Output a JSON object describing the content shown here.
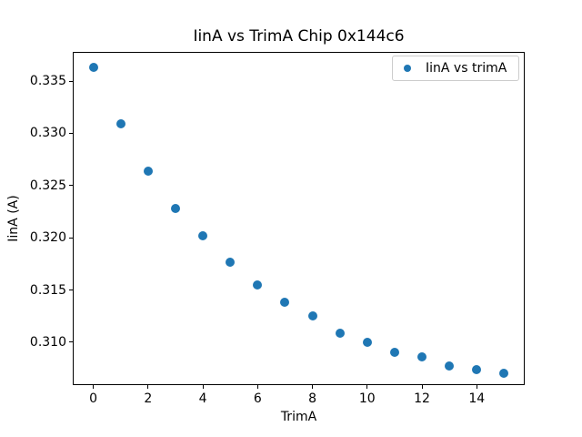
{
  "window": {
    "background_color": "#ffffff",
    "text_color": "#000000",
    "spine_color": "#000000",
    "legend_border_color": "#cccccc"
  },
  "chart_data": {
    "type": "scatter",
    "title": "IinA vs TrimA Chip 0x144c6",
    "xlabel": "TrimA",
    "ylabel": "IinA (A)",
    "grid": false,
    "legend": {
      "label": "IinA vs trimA",
      "position": "upper right",
      "marker_icon": "filled-circle"
    },
    "series": [
      {
        "name": "IinA vs trimA",
        "color": "#1f77b4",
        "x": [
          0,
          1,
          2,
          3,
          4,
          5,
          6,
          7,
          8,
          9,
          10,
          11,
          12,
          13,
          14,
          15
        ],
        "y": [
          0.3363,
          0.3309,
          0.3264,
          0.3228,
          0.3202,
          0.3177,
          0.3155,
          0.3138,
          0.3125,
          0.3109,
          0.31,
          0.309,
          0.3086,
          0.3077,
          0.3074,
          0.307
        ]
      }
    ],
    "xlim": [
      -0.75,
      15.75
    ],
    "ylim": [
      0.3059,
      0.3378
    ],
    "xtick_labels": [
      "0",
      "2",
      "4",
      "6",
      "8",
      "10",
      "12",
      "14"
    ],
    "ytick_labels": [
      "0.310",
      "0.315",
      "0.320",
      "0.325",
      "0.330",
      "0.335"
    ]
  }
}
